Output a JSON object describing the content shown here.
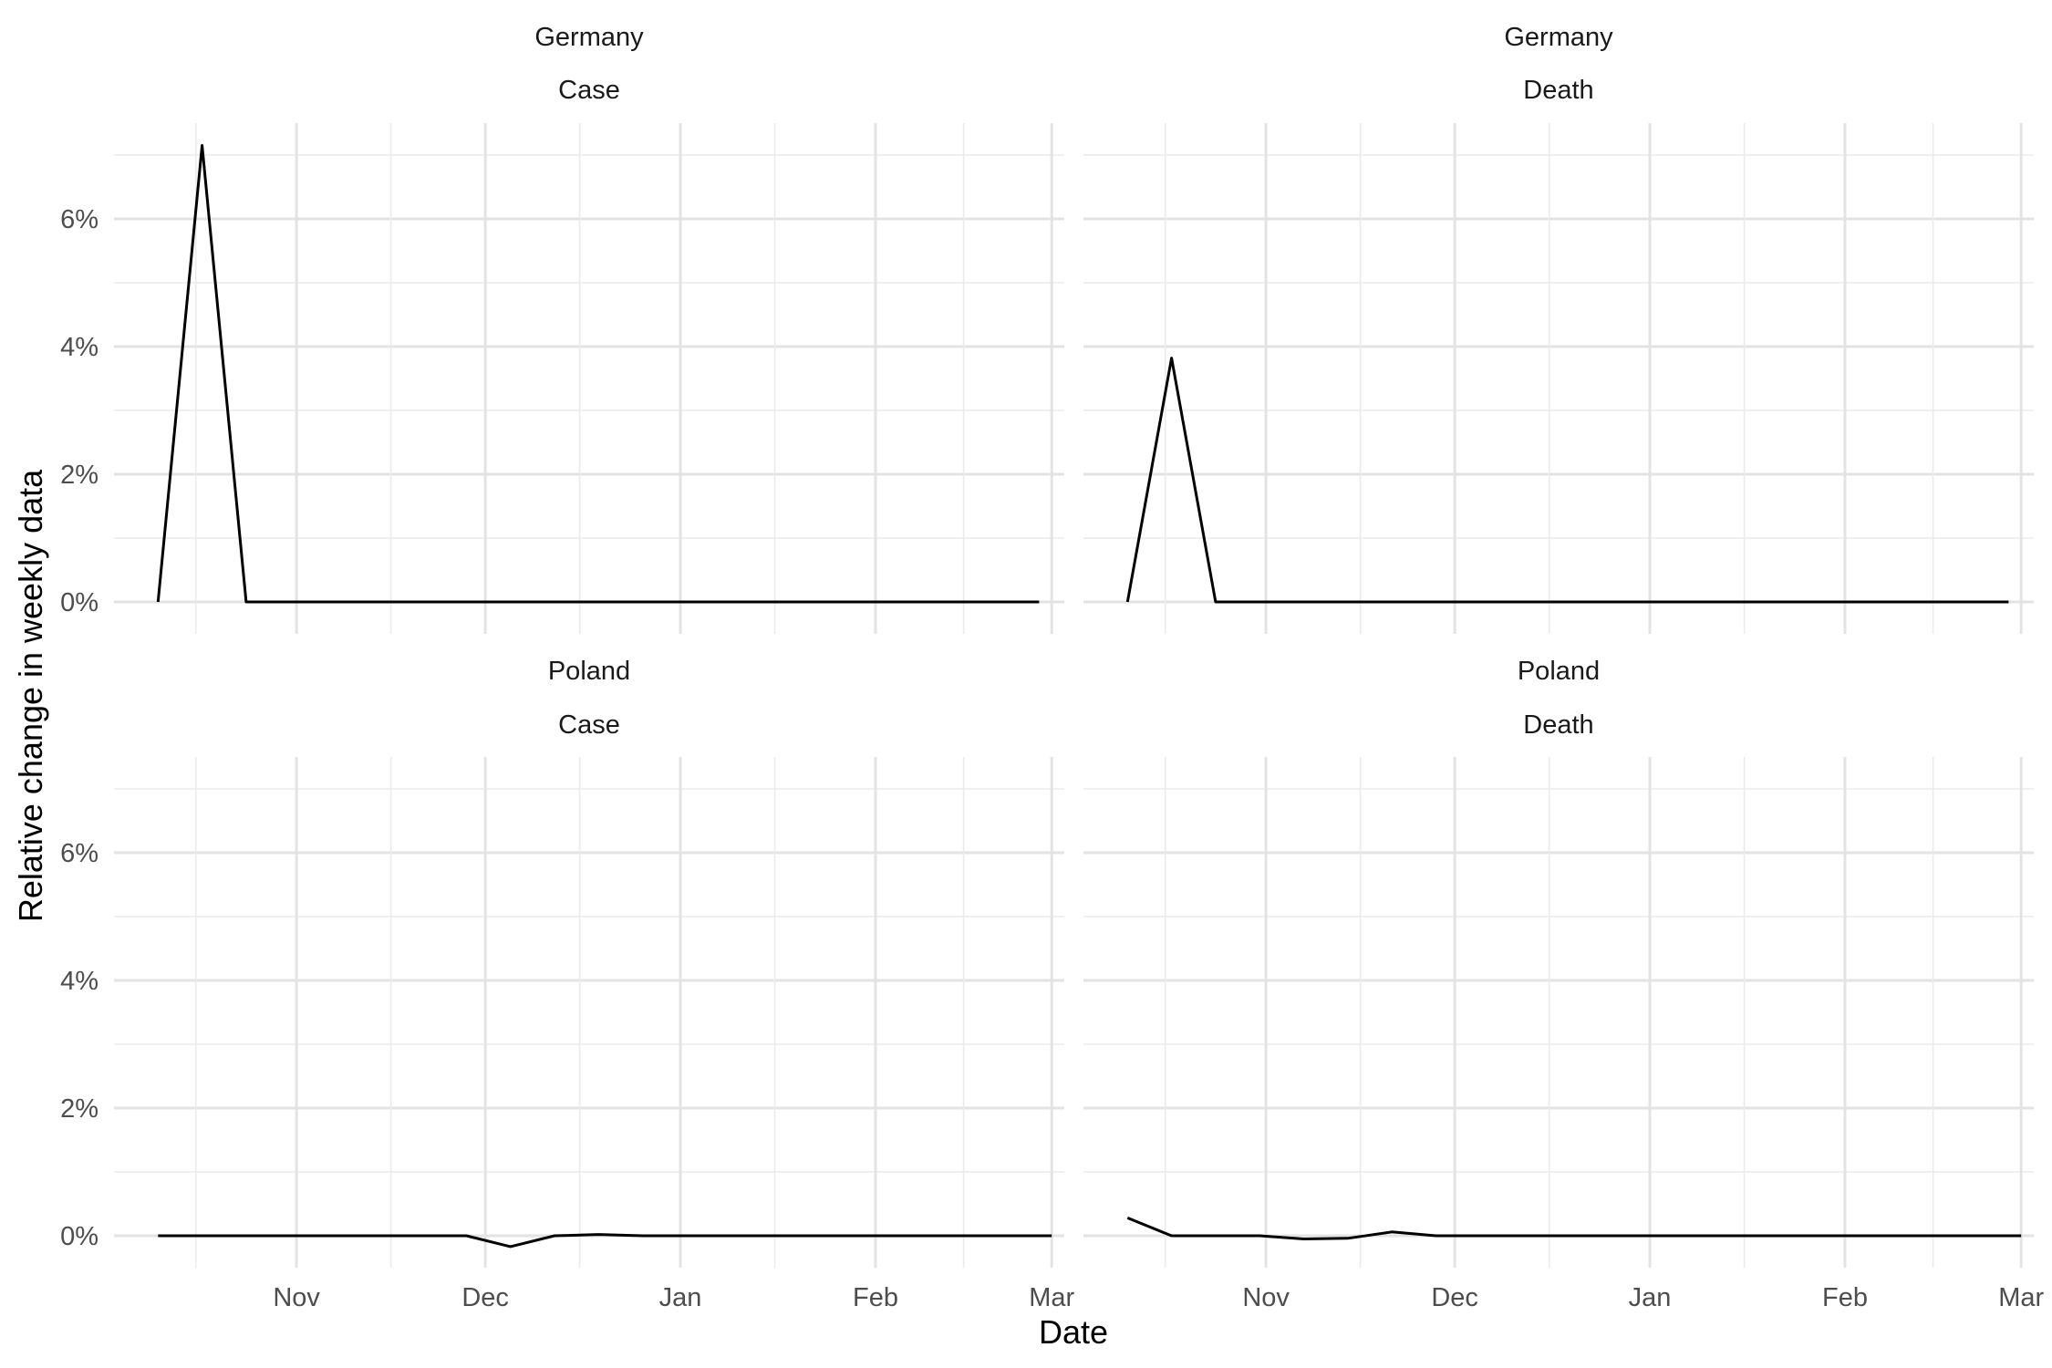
{
  "chart_data": {
    "type": "line",
    "facets": "2x2",
    "xlabel": "Date",
    "ylabel": "Relative change in weekly data",
    "x_ticks": [
      "Nov",
      "Dec",
      "Jan",
      "Feb",
      "Mar"
    ],
    "y_ticks": [
      "0%",
      "2%",
      "4%",
      "6%"
    ],
    "xlim": [
      "2020-10-03",
      "2021-03-03"
    ],
    "ylim": [
      -0.5,
      7.5
    ],
    "y_unit": "%",
    "grid": true,
    "panels": [
      {
        "country": "Germany",
        "metric": "Case",
        "series": [
          {
            "x": [
              "2020-10-10",
              "2020-10-17",
              "2020-10-24",
              "2020-10-31",
              "2020-11-07",
              "2020-11-14",
              "2020-11-21",
              "2020-11-28",
              "2020-12-05",
              "2020-12-12",
              "2020-12-19",
              "2020-12-26",
              "2021-01-02",
              "2021-01-09",
              "2021-01-16",
              "2021-01-23",
              "2021-01-30",
              "2021-02-06",
              "2021-02-13",
              "2021-02-20",
              "2021-02-27"
            ],
            "y": [
              0,
              7.15,
              0,
              0,
              0,
              0,
              0,
              0,
              0,
              0,
              0,
              0,
              0,
              0,
              0,
              0,
              0,
              0,
              0,
              0,
              0
            ]
          }
        ]
      },
      {
        "country": "Germany",
        "metric": "Death",
        "series": [
          {
            "x": [
              "2020-10-10",
              "2020-10-17",
              "2020-10-24",
              "2020-10-31",
              "2020-11-07",
              "2020-11-14",
              "2020-11-21",
              "2020-11-28",
              "2020-12-05",
              "2020-12-12",
              "2020-12-19",
              "2020-12-26",
              "2021-01-02",
              "2021-01-09",
              "2021-01-16",
              "2021-01-23",
              "2021-01-30",
              "2021-02-06",
              "2021-02-13",
              "2021-02-20",
              "2021-02-27"
            ],
            "y": [
              0,
              3.82,
              0,
              0,
              0,
              0,
              0,
              0,
              0,
              0,
              0,
              0,
              0,
              0,
              0,
              0,
              0,
              0,
              0,
              0,
              0
            ]
          }
        ]
      },
      {
        "country": "Poland",
        "metric": "Case",
        "series": [
          {
            "x": [
              "2020-10-10",
              "2020-10-17",
              "2020-10-24",
              "2020-10-31",
              "2020-11-07",
              "2020-11-14",
              "2020-11-21",
              "2020-11-28",
              "2020-12-05",
              "2020-12-12",
              "2020-12-19",
              "2020-12-26",
              "2021-01-02",
              "2021-01-09",
              "2021-01-16",
              "2021-01-23",
              "2021-01-30",
              "2021-02-06",
              "2021-02-13",
              "2021-02-20",
              "2021-02-27",
              "2021-03-01"
            ],
            "y": [
              0,
              0,
              0,
              0,
              0,
              0,
              0,
              0,
              -0.17,
              0,
              0.02,
              0,
              0,
              0,
              0,
              0,
              0,
              0,
              0,
              0,
              0,
              0
            ]
          }
        ]
      },
      {
        "country": "Poland",
        "metric": "Death",
        "series": [
          {
            "x": [
              "2020-10-10",
              "2020-10-17",
              "2020-10-24",
              "2020-10-31",
              "2020-11-07",
              "2020-11-14",
              "2020-11-21",
              "2020-11-28",
              "2020-12-05",
              "2020-12-12",
              "2020-12-19",
              "2020-12-26",
              "2021-01-02",
              "2021-01-09",
              "2021-01-16",
              "2021-01-23",
              "2021-01-30",
              "2021-02-06",
              "2021-02-13",
              "2021-02-20",
              "2021-02-27",
              "2021-03-01"
            ],
            "y": [
              0.28,
              0,
              0,
              0,
              -0.05,
              -0.04,
              0.06,
              0,
              0,
              0,
              0,
              0,
              0,
              0,
              0,
              0,
              0,
              0,
              0,
              0,
              0,
              0
            ]
          }
        ]
      }
    ]
  }
}
